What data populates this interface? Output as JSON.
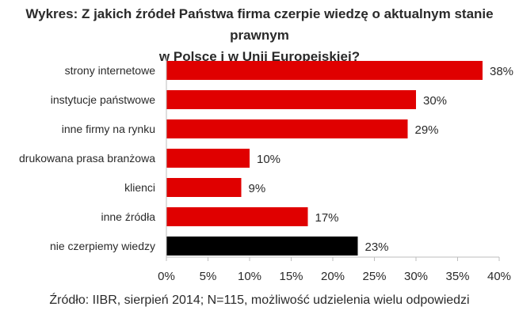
{
  "chart_data": {
    "type": "bar",
    "orientation": "horizontal",
    "title_lines": [
      "Wykres: Z jakich źródeł Państwa firma czerpie wiedzę o aktualnym stanie prawnym",
      "w Polsce i w Unii Europejskiej?"
    ],
    "categories": [
      "strony internetowe",
      "instytucje państwowe",
      "inne firmy na rynku",
      "drukowana prasa branżowa",
      "klienci",
      "inne źródła",
      "nie czerpiemy wiedzy"
    ],
    "values": [
      38,
      30,
      29,
      10,
      9,
      17,
      23
    ],
    "value_labels": [
      "38%",
      "30%",
      "29%",
      "10%",
      "9%",
      "17%",
      "23%"
    ],
    "bar_colors": [
      "#e00000",
      "#e00000",
      "#e00000",
      "#e00000",
      "#e00000",
      "#e00000",
      "#000000"
    ],
    "xlim": [
      0,
      40
    ],
    "x_ticks": [
      0,
      5,
      10,
      15,
      20,
      25,
      30,
      35,
      40
    ],
    "x_tick_labels": [
      "0%",
      "5%",
      "10%",
      "15%",
      "20%",
      "25%",
      "30%",
      "35%",
      "40%"
    ],
    "grid": false,
    "legend": "none",
    "source": "Źródło: IIBR, sierpień 2014; N=115, możliwość udzielenia wielu odpowiedzi"
  }
}
